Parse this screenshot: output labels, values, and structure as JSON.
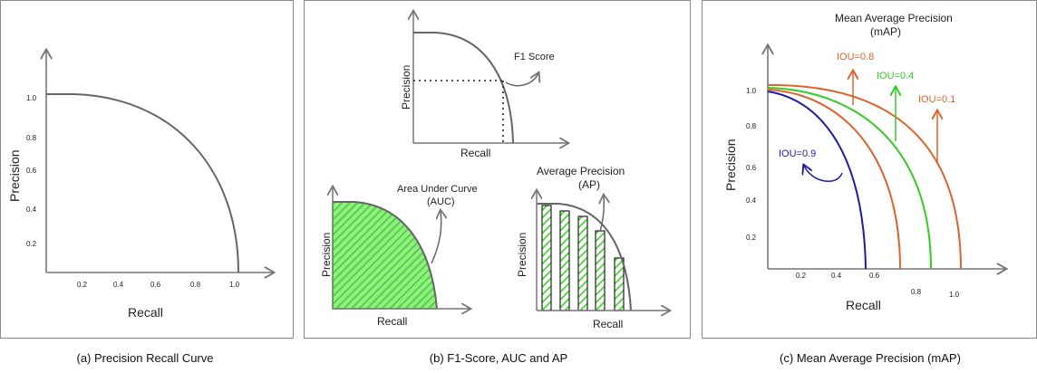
{
  "captions": {
    "a": "(a) Precision Recall Curve",
    "b": "(b) F1-Score, AUC and AP",
    "c": "(c) Mean Average Precision (mAP)"
  },
  "panel_a": {
    "xlabel": "Recall",
    "ylabel": "Precision",
    "xticks": [
      "0.2",
      "0.4",
      "0.6",
      "0.8",
      "1.0"
    ],
    "yticks": [
      "1.0",
      "0.8",
      "0.6",
      "0.4",
      "0.2"
    ]
  },
  "panel_b": {
    "f1": {
      "xlabel": "Recall",
      "ylabel": "Precision",
      "note": "F1 Score"
    },
    "auc": {
      "xlabel": "Recall",
      "ylabel": "Precision",
      "note_line1": "Area Under Curve",
      "note_line2": "(AUC)",
      "fill_color": "#3fd82a"
    },
    "ap": {
      "xlabel": "Recall",
      "ylabel": "Precision",
      "note_line1": "Average Precision",
      "note_line2": "(AP)",
      "bar_color": "#3fd82a"
    }
  },
  "panel_c": {
    "title_line1": "Mean Average Precision",
    "title_line2": "(mAP)",
    "xlabel": "Recall",
    "ylabel": "Precision",
    "xticks": [
      "0.2",
      "0.4",
      "0.6",
      "0.8",
      "1.0"
    ],
    "yticks": [
      "1.0",
      "0.8",
      "0.6",
      "0.4",
      "0.2"
    ],
    "curves": [
      {
        "label": "IOU=0.9",
        "color": "#1c1caa"
      },
      {
        "label": "IOU=0.8",
        "color": "#e0622a"
      },
      {
        "label": "IOU=0.4",
        "color": "#33cc22"
      },
      {
        "label": "IOU=0.1",
        "color": "#e0622a"
      }
    ]
  }
}
